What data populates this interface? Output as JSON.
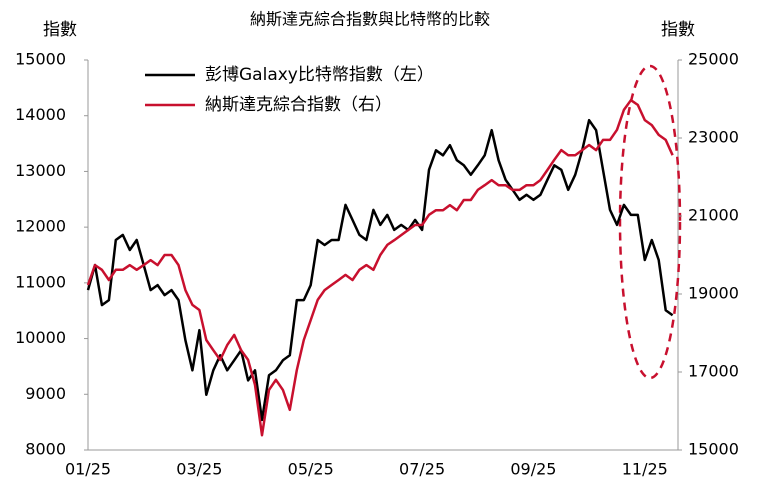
{
  "chart_data": {
    "type": "line",
    "title": "納斯達克綜合指數與比特幣的比較",
    "y_label": "指數",
    "y2_label": "指數",
    "categories": [
      "01/25",
      null,
      null,
      null,
      null,
      null,
      null,
      null,
      null,
      null,
      null,
      null,
      null,
      null,
      null,
      null,
      "03/25",
      null,
      null,
      null,
      null,
      null,
      null,
      null,
      null,
      null,
      null,
      null,
      null,
      null,
      null,
      null,
      "05/25",
      null,
      null,
      null,
      null,
      null,
      null,
      null,
      null,
      null,
      null,
      null,
      null,
      null,
      null,
      null,
      "07/25",
      null,
      null,
      null,
      null,
      null,
      null,
      null,
      null,
      null,
      null,
      null,
      null,
      null,
      null,
      null,
      "09/25",
      null,
      null,
      null,
      null,
      null,
      null,
      null,
      null,
      null,
      null,
      null,
      null,
      null,
      null,
      null,
      "11/25",
      null,
      null,
      null,
      null
    ],
    "series": [
      {
        "name": "彭博Galaxy比特幣指數（左）",
        "color": "#000000",
        "axis": "y",
        "values": [
          10870,
          11320,
          10600,
          10690,
          11770,
          11860,
          11590,
          11770,
          11320,
          10870,
          10960,
          10780,
          10870,
          10690,
          9970,
          9430,
          10150,
          8990,
          9430,
          9700,
          9430,
          9610,
          9790,
          9250,
          9430,
          8540,
          9340,
          9430,
          9610,
          9700,
          10690,
          10690,
          10960,
          11770,
          11680,
          11770,
          11770,
          12400,
          12130,
          11860,
          11770,
          12310,
          12040,
          12220,
          11950,
          12040,
          11950,
          12130,
          11950,
          13030,
          13380,
          13290,
          13470,
          13200,
          13110,
          12940,
          13110,
          13290,
          13740,
          13200,
          12850,
          12670,
          12490,
          12580,
          12490,
          12580,
          12850,
          13110,
          13030,
          12670,
          12940,
          13380,
          13920,
          13740,
          13030,
          12310,
          12040,
          12400,
          12220,
          12220,
          11410,
          11770,
          11410,
          10510,
          10420
        ]
      },
      {
        "name": "納斯達克綜合指數（右）",
        "color": "#c8102e",
        "axis": "y2",
        "values": [
          19230,
          19740,
          19620,
          19360,
          19620,
          19620,
          19740,
          19620,
          19740,
          19870,
          19740,
          20000,
          20000,
          19740,
          19100,
          18720,
          18590,
          17820,
          17560,
          17310,
          17690,
          17950,
          17560,
          17310,
          16670,
          15380,
          16540,
          16800,
          16540,
          16030,
          17050,
          17820,
          18330,
          18850,
          19100,
          19230,
          19360,
          19490,
          19360,
          19620,
          19740,
          19620,
          20000,
          20260,
          20380,
          20510,
          20640,
          20770,
          20770,
          21030,
          21150,
          21150,
          21280,
          21150,
          21410,
          21410,
          21670,
          21790,
          21920,
          21790,
          21790,
          21670,
          21670,
          21790,
          21790,
          21920,
          22180,
          22440,
          22690,
          22560,
          22560,
          22690,
          22820,
          22690,
          22950,
          22950,
          23210,
          23720,
          23970,
          23850,
          23460,
          23330,
          23080,
          22950,
          22560
        ]
      }
    ],
    "ylim": [
      8000,
      15000
    ],
    "yticks": [
      8000,
      9000,
      10000,
      11000,
      12000,
      13000,
      14000,
      15000
    ],
    "y2lim": [
      15000,
      25000
    ],
    "y2ticks": [
      15000,
      17000,
      19000,
      21000,
      23000,
      25000
    ],
    "grid": false,
    "legend": "upper-left"
  }
}
